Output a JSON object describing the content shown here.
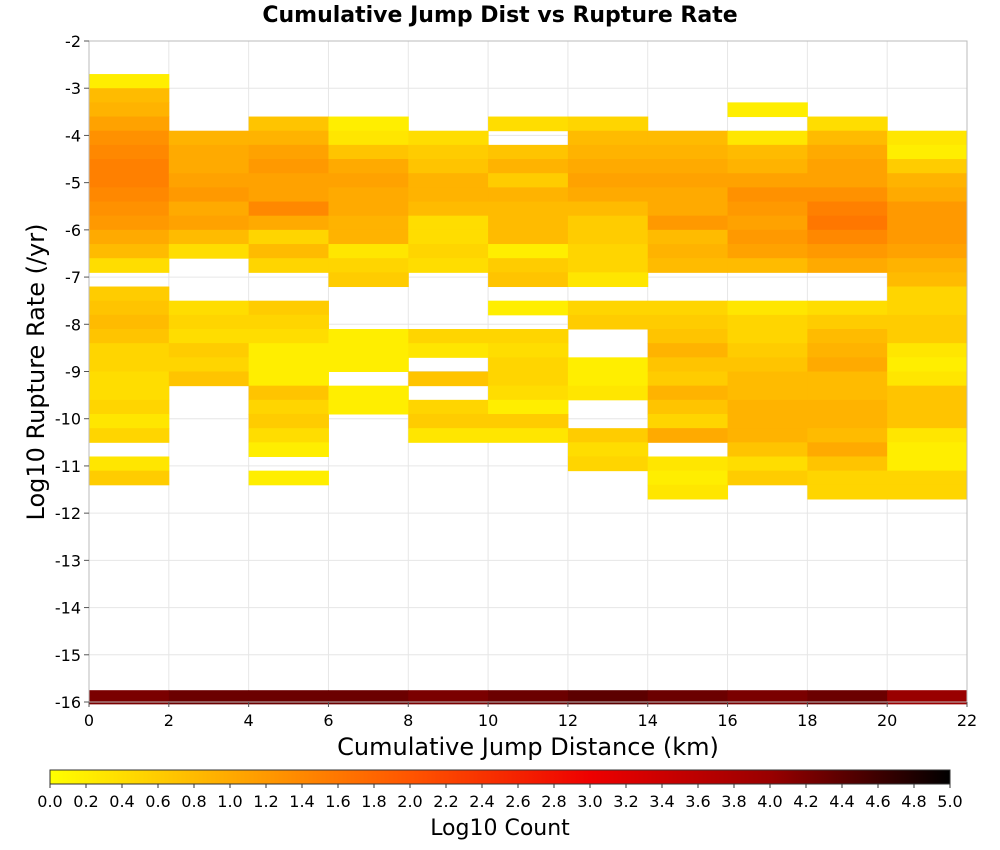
{
  "chart_data": {
    "type": "heatmap",
    "title": "Cumulative Jump Dist vs Rupture Rate",
    "xlabel": "Cumulative Jump Distance (km)",
    "ylabel": "Log10 Rupture Rate (/yr)",
    "xlim": [
      0,
      22
    ],
    "ylim": [
      -16,
      -2
    ],
    "x_ticks": [
      "0",
      "2",
      "4",
      "6",
      "8",
      "10",
      "12",
      "14",
      "16",
      "18",
      "20",
      "22"
    ],
    "y_ticks": [
      "-2",
      "-3",
      "-4",
      "-5",
      "-6",
      "-7",
      "-8",
      "-9",
      "-10",
      "-11",
      "-12",
      "-13",
      "-14",
      "-15",
      "-16"
    ],
    "grid": true,
    "x_bin_width": 2,
    "y_bin_height": 0.3,
    "colorbar": {
      "label": "Log10 Count",
      "min": 0.0,
      "max": 5.0,
      "ticks": [
        "0.0",
        "0.2",
        "0.4",
        "0.6",
        "0.8",
        "1.0",
        "1.2",
        "1.4",
        "1.6",
        "1.8",
        "2.0",
        "2.2",
        "2.4",
        "2.6",
        "2.8",
        "3.0",
        "3.2",
        "3.4",
        "3.6",
        "3.8",
        "4.0",
        "4.2",
        "4.4",
        "4.6",
        "4.8",
        "5.0"
      ],
      "colors": [
        "#ffff00",
        "#ffaa00",
        "#ff5500",
        "#ee0000",
        "#990000",
        "#000000"
      ]
    },
    "columns": [
      {
        "x": 1,
        "cells": [
          [
            -2.85,
            0.2
          ],
          [
            -3.15,
            0.8
          ],
          [
            -3.45,
            0.9
          ],
          [
            -3.75,
            1.1
          ],
          [
            -4.05,
            1.3
          ],
          [
            -4.35,
            1.4
          ],
          [
            -4.65,
            1.5
          ],
          [
            -4.95,
            1.5
          ],
          [
            -5.25,
            1.4
          ],
          [
            -5.55,
            1.3
          ],
          [
            -5.85,
            1.2
          ],
          [
            -6.15,
            1.0
          ],
          [
            -6.45,
            0.8
          ],
          [
            -6.75,
            0.4
          ],
          [
            -7.35,
            0.6
          ],
          [
            -7.65,
            0.7
          ],
          [
            -7.95,
            0.8
          ],
          [
            -8.25,
            0.7
          ],
          [
            -8.55,
            0.5
          ],
          [
            -8.85,
            0.5
          ],
          [
            -9.15,
            0.4
          ],
          [
            -9.45,
            0.4
          ],
          [
            -9.75,
            0.5
          ],
          [
            -10.05,
            0.3
          ],
          [
            -10.35,
            0.5
          ],
          [
            -10.95,
            0.3
          ],
          [
            -11.25,
            0.6
          ]
        ]
      },
      {
        "x": 3,
        "cells": [
          [
            -4.05,
            0.9
          ],
          [
            -4.35,
            1.0
          ],
          [
            -4.65,
            1.0
          ],
          [
            -4.95,
            1.1
          ],
          [
            -5.25,
            1.2
          ],
          [
            -5.55,
            1.0
          ],
          [
            -5.85,
            1.1
          ],
          [
            -6.15,
            0.8
          ],
          [
            -6.45,
            0.4
          ],
          [
            -7.65,
            0.4
          ],
          [
            -7.95,
            0.5
          ],
          [
            -8.25,
            0.4
          ],
          [
            -8.55,
            0.6
          ],
          [
            -8.85,
            0.5
          ],
          [
            -9.15,
            0.7
          ]
        ]
      },
      {
        "x": 5,
        "cells": [
          [
            -3.75,
            0.7
          ],
          [
            -4.05,
            0.9
          ],
          [
            -4.35,
            1.1
          ],
          [
            -4.65,
            1.2
          ],
          [
            -4.95,
            1.1
          ],
          [
            -5.25,
            1.1
          ],
          [
            -5.55,
            1.4
          ],
          [
            -5.85,
            1.0
          ],
          [
            -6.15,
            0.5
          ],
          [
            -6.45,
            0.8
          ],
          [
            -6.75,
            0.5
          ],
          [
            -7.65,
            0.6
          ],
          [
            -7.95,
            0.5
          ],
          [
            -8.25,
            0.4
          ],
          [
            -8.55,
            0.2
          ],
          [
            -8.85,
            0.2
          ],
          [
            -9.15,
            0.2
          ],
          [
            -9.45,
            0.7
          ],
          [
            -9.75,
            0.5
          ],
          [
            -10.05,
            0.6
          ],
          [
            -10.35,
            0.4
          ],
          [
            -10.65,
            0.2
          ],
          [
            -11.25,
            0.2
          ]
        ]
      },
      {
        "x": 7,
        "cells": [
          [
            -3.75,
            0.2
          ],
          [
            -4.05,
            0.3
          ],
          [
            -4.35,
            0.7
          ],
          [
            -4.65,
            1.0
          ],
          [
            -4.95,
            1.1
          ],
          [
            -5.25,
            1.0
          ],
          [
            -5.55,
            1.0
          ],
          [
            -5.85,
            0.9
          ],
          [
            -6.15,
            0.9
          ],
          [
            -6.45,
            0.3
          ],
          [
            -6.75,
            0.5
          ],
          [
            -7.05,
            0.6
          ],
          [
            -8.25,
            0.2
          ],
          [
            -8.55,
            0.2
          ],
          [
            -8.85,
            0.2
          ],
          [
            -9.45,
            0.2
          ],
          [
            -9.75,
            0.2
          ]
        ]
      },
      {
        "x": 9,
        "cells": [
          [
            -4.05,
            0.4
          ],
          [
            -4.35,
            0.6
          ],
          [
            -4.65,
            0.7
          ],
          [
            -4.95,
            0.9
          ],
          [
            -5.25,
            0.9
          ],
          [
            -5.55,
            0.8
          ],
          [
            -5.85,
            0.4
          ],
          [
            -6.15,
            0.4
          ],
          [
            -6.45,
            0.5
          ],
          [
            -6.75,
            0.4
          ],
          [
            -8.25,
            0.5
          ],
          [
            -8.55,
            0.3
          ],
          [
            -9.15,
            0.7
          ],
          [
            -9.75,
            0.5
          ],
          [
            -10.05,
            0.6
          ],
          [
            -10.35,
            0.3
          ]
        ]
      },
      {
        "x": 11,
        "cells": [
          [
            -3.75,
            0.4
          ],
          [
            -4.35,
            0.7
          ],
          [
            -4.65,
            0.9
          ],
          [
            -4.95,
            0.6
          ],
          [
            -5.25,
            0.9
          ],
          [
            -5.55,
            0.8
          ],
          [
            -5.85,
            0.8
          ],
          [
            -6.15,
            0.8
          ],
          [
            -6.45,
            0.2
          ],
          [
            -6.75,
            0.6
          ],
          [
            -7.05,
            0.7
          ],
          [
            -7.65,
            0.2
          ],
          [
            -8.25,
            0.5
          ],
          [
            -8.55,
            0.4
          ],
          [
            -8.85,
            0.5
          ],
          [
            -9.15,
            0.5
          ],
          [
            -9.45,
            0.4
          ],
          [
            -9.75,
            0.2
          ],
          [
            -10.05,
            0.6
          ],
          [
            -10.35,
            0.3
          ]
        ]
      },
      {
        "x": 13,
        "cells": [
          [
            -3.75,
            0.5
          ],
          [
            -4.05,
            0.8
          ],
          [
            -4.35,
            0.9
          ],
          [
            -4.65,
            1.0
          ],
          [
            -4.95,
            1.1
          ],
          [
            -5.25,
            1.0
          ],
          [
            -5.55,
            0.8
          ],
          [
            -5.85,
            0.6
          ],
          [
            -6.15,
            0.6
          ],
          [
            -6.45,
            0.5
          ],
          [
            -6.75,
            0.5
          ],
          [
            -7.05,
            0.3
          ],
          [
            -7.65,
            0.5
          ],
          [
            -7.95,
            0.6
          ],
          [
            -8.85,
            0.2
          ],
          [
            -9.15,
            0.2
          ],
          [
            -9.45,
            0.3
          ],
          [
            -10.35,
            0.6
          ],
          [
            -10.65,
            0.4
          ],
          [
            -10.95,
            0.5
          ]
        ]
      },
      {
        "x": 15,
        "cells": [
          [
            -4.05,
            0.8
          ],
          [
            -4.35,
            0.9
          ],
          [
            -4.65,
            1.0
          ],
          [
            -4.95,
            1.1
          ],
          [
            -5.25,
            1.0
          ],
          [
            -5.55,
            1.0
          ],
          [
            -5.85,
            1.2
          ],
          [
            -6.15,
            0.8
          ],
          [
            -6.45,
            0.9
          ],
          [
            -6.75,
            0.8
          ],
          [
            -7.65,
            0.5
          ],
          [
            -7.95,
            0.6
          ],
          [
            -8.25,
            0.7
          ],
          [
            -8.55,
            0.9
          ],
          [
            -8.85,
            0.7
          ],
          [
            -9.15,
            0.6
          ],
          [
            -9.45,
            0.9
          ],
          [
            -9.75,
            0.7
          ],
          [
            -10.05,
            0.5
          ],
          [
            -10.35,
            1.0
          ],
          [
            -10.95,
            0.3
          ],
          [
            -11.25,
            0.2
          ],
          [
            -11.55,
            0.3
          ]
        ]
      },
      {
        "x": 17,
        "cells": [
          [
            -3.45,
            0.2
          ],
          [
            -4.05,
            0.3
          ],
          [
            -4.35,
            0.8
          ],
          [
            -4.65,
            0.9
          ],
          [
            -4.95,
            1.1
          ],
          [
            -5.25,
            1.3
          ],
          [
            -5.55,
            1.2
          ],
          [
            -5.85,
            1.1
          ],
          [
            -6.15,
            1.2
          ],
          [
            -6.45,
            1.1
          ],
          [
            -6.75,
            0.8
          ],
          [
            -7.65,
            0.3
          ],
          [
            -7.95,
            0.5
          ],
          [
            -8.25,
            0.5
          ],
          [
            -8.55,
            0.6
          ],
          [
            -8.85,
            0.7
          ],
          [
            -9.15,
            0.8
          ],
          [
            -9.45,
            0.8
          ],
          [
            -9.75,
            0.9
          ],
          [
            -10.05,
            0.9
          ],
          [
            -10.35,
            0.9
          ],
          [
            -10.65,
            0.7
          ],
          [
            -10.95,
            0.4
          ],
          [
            -11.25,
            0.6
          ]
        ]
      },
      {
        "x": 19,
        "cells": [
          [
            -3.75,
            0.4
          ],
          [
            -4.05,
            0.8
          ],
          [
            -4.35,
            1.0
          ],
          [
            -4.65,
            1.1
          ],
          [
            -4.95,
            1.1
          ],
          [
            -5.25,
            1.3
          ],
          [
            -5.55,
            1.5
          ],
          [
            -5.85,
            1.6
          ],
          [
            -6.15,
            1.4
          ],
          [
            -6.45,
            1.2
          ],
          [
            -6.75,
            1.0
          ],
          [
            -7.65,
            0.4
          ],
          [
            -7.95,
            0.6
          ],
          [
            -8.25,
            0.8
          ],
          [
            -8.55,
            0.9
          ],
          [
            -8.85,
            1.0
          ],
          [
            -9.15,
            0.8
          ],
          [
            -9.45,
            0.8
          ],
          [
            -9.75,
            0.9
          ],
          [
            -10.05,
            0.9
          ],
          [
            -10.35,
            0.8
          ],
          [
            -10.65,
            1.0
          ],
          [
            -10.95,
            0.7
          ],
          [
            -11.25,
            0.5
          ],
          [
            -11.55,
            0.5
          ]
        ]
      },
      {
        "x": 21,
        "cells": [
          [
            -4.05,
            0.3
          ],
          [
            -4.35,
            0.2
          ],
          [
            -4.65,
            0.6
          ],
          [
            -4.95,
            0.9
          ],
          [
            -5.25,
            1.0
          ],
          [
            -5.55,
            1.2
          ],
          [
            -5.85,
            1.2
          ],
          [
            -6.15,
            1.2
          ],
          [
            -6.45,
            1.1
          ],
          [
            -6.75,
            0.9
          ],
          [
            -7.05,
            0.8
          ],
          [
            -7.35,
            0.5
          ],
          [
            -7.65,
            0.5
          ],
          [
            -7.95,
            0.6
          ],
          [
            -8.25,
            0.6
          ],
          [
            -8.55,
            0.3
          ],
          [
            -8.85,
            0.2
          ],
          [
            -9.15,
            0.3
          ],
          [
            -9.45,
            0.7
          ],
          [
            -9.75,
            0.7
          ],
          [
            -10.05,
            0.7
          ],
          [
            -10.35,
            0.3
          ],
          [
            -10.65,
            0.2
          ],
          [
            -10.95,
            0.2
          ],
          [
            -11.25,
            0.5
          ],
          [
            -11.55,
            0.5
          ]
        ]
      }
    ],
    "bottom_row": {
      "y": -15.9,
      "values": [
        4.2,
        4.3,
        4.3,
        4.3,
        4.2,
        4.3,
        4.4,
        4.3,
        4.2,
        4.3,
        4.0
      ]
    }
  }
}
